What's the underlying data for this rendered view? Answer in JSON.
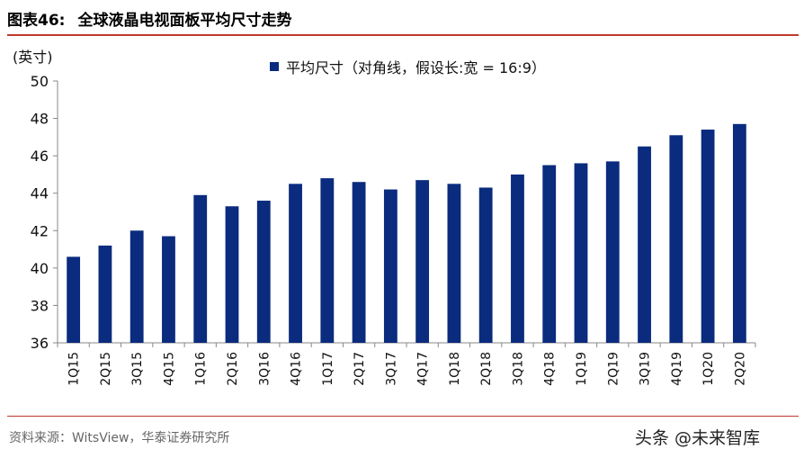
{
  "figure": {
    "number_label": "图表46:",
    "title": "全球液晶电视面板平均尺寸走势",
    "source": "资料来源：WitsView，华泰证券研究所",
    "watermark": "头条 @未来智库"
  },
  "colors": {
    "bar": "#0a2b7e",
    "accent_rule": "#c0392b"
  },
  "chart_data": {
    "type": "bar",
    "ylabel": "(英寸)",
    "ylim": [
      36,
      50
    ],
    "yticks": [
      36,
      38,
      40,
      42,
      44,
      46,
      48,
      50
    ],
    "categories": [
      "1Q15",
      "2Q15",
      "3Q15",
      "4Q15",
      "1Q16",
      "2Q16",
      "3Q16",
      "4Q16",
      "1Q17",
      "2Q17",
      "3Q17",
      "4Q17",
      "1Q18",
      "2Q18",
      "3Q18",
      "4Q18",
      "1Q19",
      "2Q19",
      "3Q19",
      "4Q19",
      "1Q20",
      "2Q20"
    ],
    "series": [
      {
        "name": "平均尺寸（对角线，假设长:宽 = 16:9）",
        "values": [
          40.6,
          41.2,
          42.0,
          41.7,
          43.9,
          43.3,
          43.6,
          44.5,
          44.8,
          44.6,
          44.2,
          44.7,
          44.5,
          44.3,
          45.0,
          45.5,
          45.6,
          45.7,
          46.5,
          47.1,
          47.4,
          47.7
        ]
      }
    ],
    "grid": false,
    "legend_position": "top-center"
  }
}
